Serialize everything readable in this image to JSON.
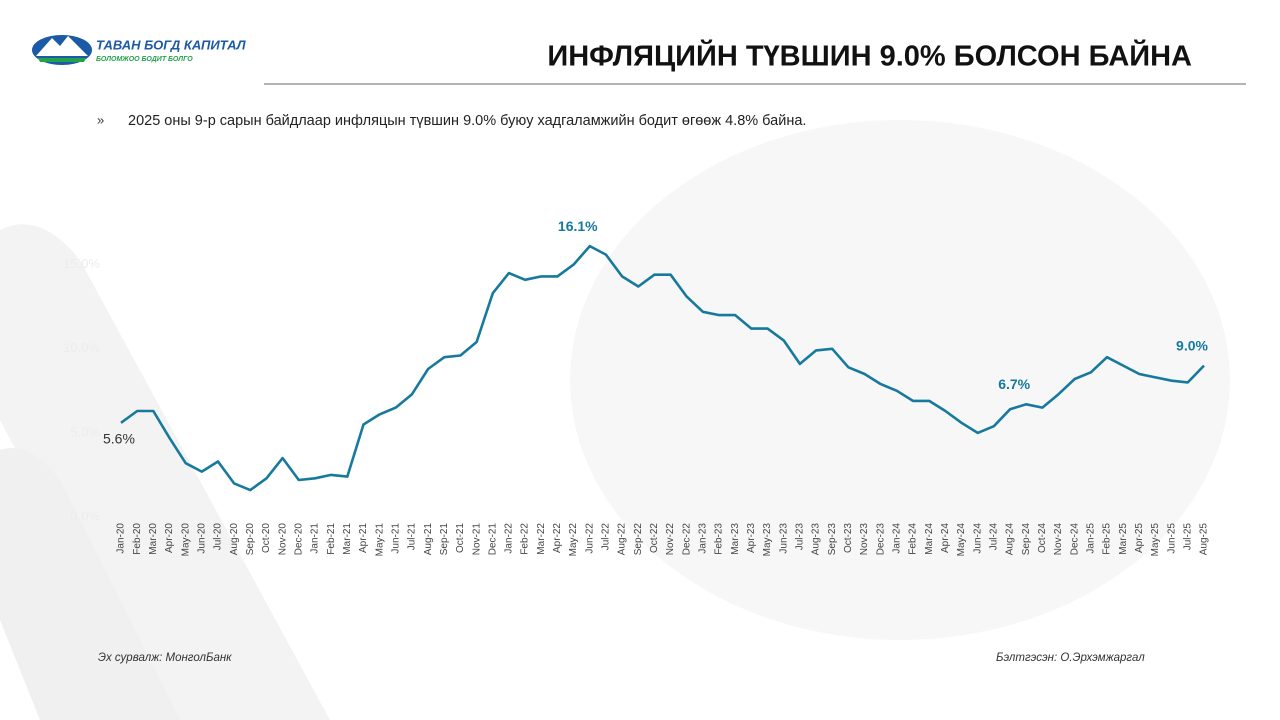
{
  "header": {
    "logo_name": "ТАВАН БОГД КАПИТАЛ",
    "logo_tagline": "БОЛОМЖОО БОДИТ БОЛГО",
    "title": "ИНФЛЯЦИЙН ТҮВШИН 9.0% БОЛСОН БАЙНА"
  },
  "bullet": {
    "marker": "»",
    "text": "2025 оны 9-р сарын байдлаар инфляцын түвшин 9.0% буюу хадгаламжийн бодит өгөөж 4.8% байна."
  },
  "chart_data": {
    "type": "line",
    "color": "#17799c",
    "categories": [
      "Jan-20",
      "Feb-20",
      "Mar-20",
      "Apr-20",
      "May-20",
      "Jun-20",
      "Jul-20",
      "Aug-20",
      "Sep-20",
      "Oct-20",
      "Nov-20",
      "Dec-20",
      "Jan-21",
      "Feb-21",
      "Mar-21",
      "Apr-21",
      "May-21",
      "Jun-21",
      "Jul-21",
      "Aug-21",
      "Sep-21",
      "Oct-21",
      "Nov-21",
      "Dec-21",
      "Jan-22",
      "Feb-22",
      "Mar-22",
      "Apr-22",
      "May-22",
      "Jun-22",
      "Jul-22",
      "Aug-22",
      "Sep-22",
      "Oct-22",
      "Nov-22",
      "Dec-22",
      "Jan-23",
      "Feb-23",
      "Mar-23",
      "Apr-23",
      "May-23",
      "Jun-23",
      "Jul-23",
      "Aug-23",
      "Sep-23",
      "Oct-23",
      "Nov-23",
      "Dec-23",
      "Jan-24",
      "Feb-24",
      "Mar-24",
      "Apr-24",
      "May-24",
      "Jun-24",
      "Jul-24",
      "Aug-24",
      "Sep-24",
      "Oct-24",
      "Nov-24",
      "Dec-24",
      "Jan-25",
      "Feb-25",
      "Mar-25",
      "Apr-25",
      "May-25",
      "Jun-25",
      "Jul-25",
      "Aug-25"
    ],
    "values": [
      5.6,
      6.3,
      6.3,
      4.7,
      3.2,
      2.7,
      3.3,
      2.0,
      1.6,
      2.3,
      3.5,
      2.2,
      2.3,
      2.5,
      2.4,
      5.5,
      6.1,
      6.5,
      7.3,
      8.8,
      9.5,
      9.6,
      10.4,
      13.3,
      14.5,
      14.1,
      14.3,
      14.3,
      15.0,
      16.1,
      15.6,
      14.3,
      13.7,
      14.4,
      14.4,
      13.1,
      12.2,
      12.0,
      12.0,
      11.2,
      11.2,
      10.5,
      9.1,
      9.9,
      10.0,
      8.9,
      8.5,
      7.9,
      7.5,
      6.9,
      6.9,
      6.3,
      5.6,
      5.0,
      5.4,
      6.4,
      6.7,
      6.5,
      7.3,
      8.2,
      8.6,
      9.5,
      9.0,
      8.5,
      8.3,
      8.1,
      8.0,
      9.0
    ],
    "value_labels": [
      "5.6%",
      null,
      null,
      null,
      null,
      null,
      null,
      null,
      null,
      null,
      null,
      null,
      null,
      null,
      null,
      null,
      null,
      null,
      null,
      null,
      null,
      null,
      null,
      null,
      null,
      null,
      null,
      null,
      null,
      "16.1%",
      null,
      null,
      null,
      null,
      null,
      null,
      null,
      null,
      null,
      null,
      null,
      null,
      null,
      null,
      null,
      null,
      null,
      null,
      null,
      null,
      null,
      null,
      null,
      null,
      null,
      null,
      "6.7%",
      null,
      null,
      null,
      null,
      null,
      null,
      null,
      null,
      null,
      null,
      "9.0%"
    ],
    "ylim": [
      0,
      17
    ],
    "yticks": [
      {
        "value": 0,
        "label": "0.0%"
      },
      {
        "value": 5,
        "label": "5.0%"
      },
      {
        "value": 10,
        "label": "10.0%"
      },
      {
        "value": 15,
        "label": "15.0%"
      }
    ]
  },
  "footer": {
    "source": "Эх сурвалж: МонголБанк",
    "author": "Бэлтгэсэн: О.Эрхэмжаргал"
  }
}
